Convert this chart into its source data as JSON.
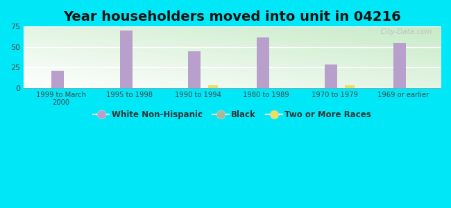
{
  "title": "Year householders moved into unit in 04216",
  "categories": [
    "1999 to March\n2000",
    "1995 to 1998",
    "1990 to 1994",
    "1980 to 1989",
    "1970 to 1979",
    "1969 or earlier"
  ],
  "white_non_hispanic": [
    21,
    70,
    45,
    62,
    29,
    55
  ],
  "black": [
    0,
    0,
    0,
    0,
    0,
    0
  ],
  "two_or_more_races": [
    0,
    0,
    3,
    0,
    3,
    0
  ],
  "bar_width": 0.18,
  "colors": {
    "white_non_hispanic": "#b89fcc",
    "black": "#a8b898",
    "two_or_more_races": "#e8e060"
  },
  "ylim": [
    0,
    75
  ],
  "yticks": [
    0,
    25,
    50,
    75
  ],
  "background_outer": "#00e8f8",
  "grid_color": "#ffffff",
  "title_fontsize": 14,
  "watermark": "  City-Data.com"
}
